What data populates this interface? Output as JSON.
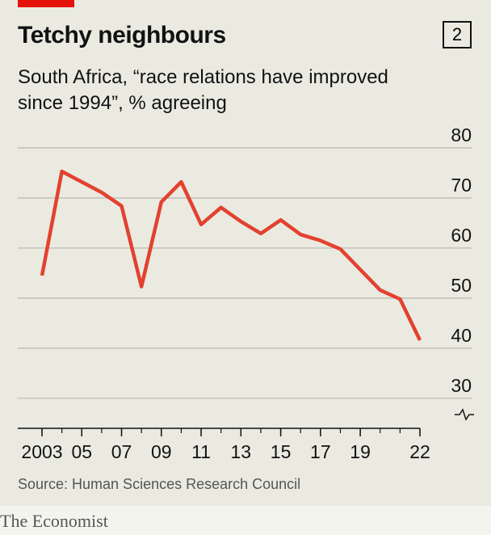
{
  "chart_data": {
    "type": "line",
    "title": "Tetchy neighbours",
    "chart_number": "2",
    "subtitle": "South Africa, “race relations have improved since 1994”, % agreeing",
    "source": "Source: Human Sciences Research Council",
    "brand": "The Economist",
    "x": [
      2003,
      2004,
      2005,
      2006,
      2007,
      2008,
      2009,
      2010,
      2011,
      2012,
      2013,
      2014,
      2015,
      2016,
      2017,
      2018,
      2019,
      2020,
      2021,
      2022
    ],
    "series": [
      {
        "name": "% agreeing",
        "color": "#e3412f",
        "values": [
          54.5,
          75.3,
          73.2,
          71.1,
          68.4,
          52.3,
          69.2,
          73.2,
          64.7,
          68.1,
          65.3,
          62.9,
          65.6,
          62.7,
          61.5,
          59.8,
          55.7,
          51.6,
          49.8,
          41.6
        ]
      }
    ],
    "xlim": [
      2003,
      2022
    ],
    "xticks": [
      2003,
      {
        "value": 2005,
        "label": "05"
      },
      {
        "value": 2007,
        "label": "07"
      },
      {
        "value": 2009,
        "label": "09"
      },
      {
        "value": 2011,
        "label": "11"
      },
      {
        "value": 2013,
        "label": "13"
      },
      {
        "value": 2015,
        "label": "15"
      },
      {
        "value": 2017,
        "label": "17"
      },
      {
        "value": 2019,
        "label": "19"
      },
      {
        "value": 2022,
        "label": "22"
      }
    ],
    "ylim": [
      24,
      80
    ],
    "yticks": [
      30,
      40,
      50,
      60,
      70,
      80
    ],
    "grid": true
  }
}
